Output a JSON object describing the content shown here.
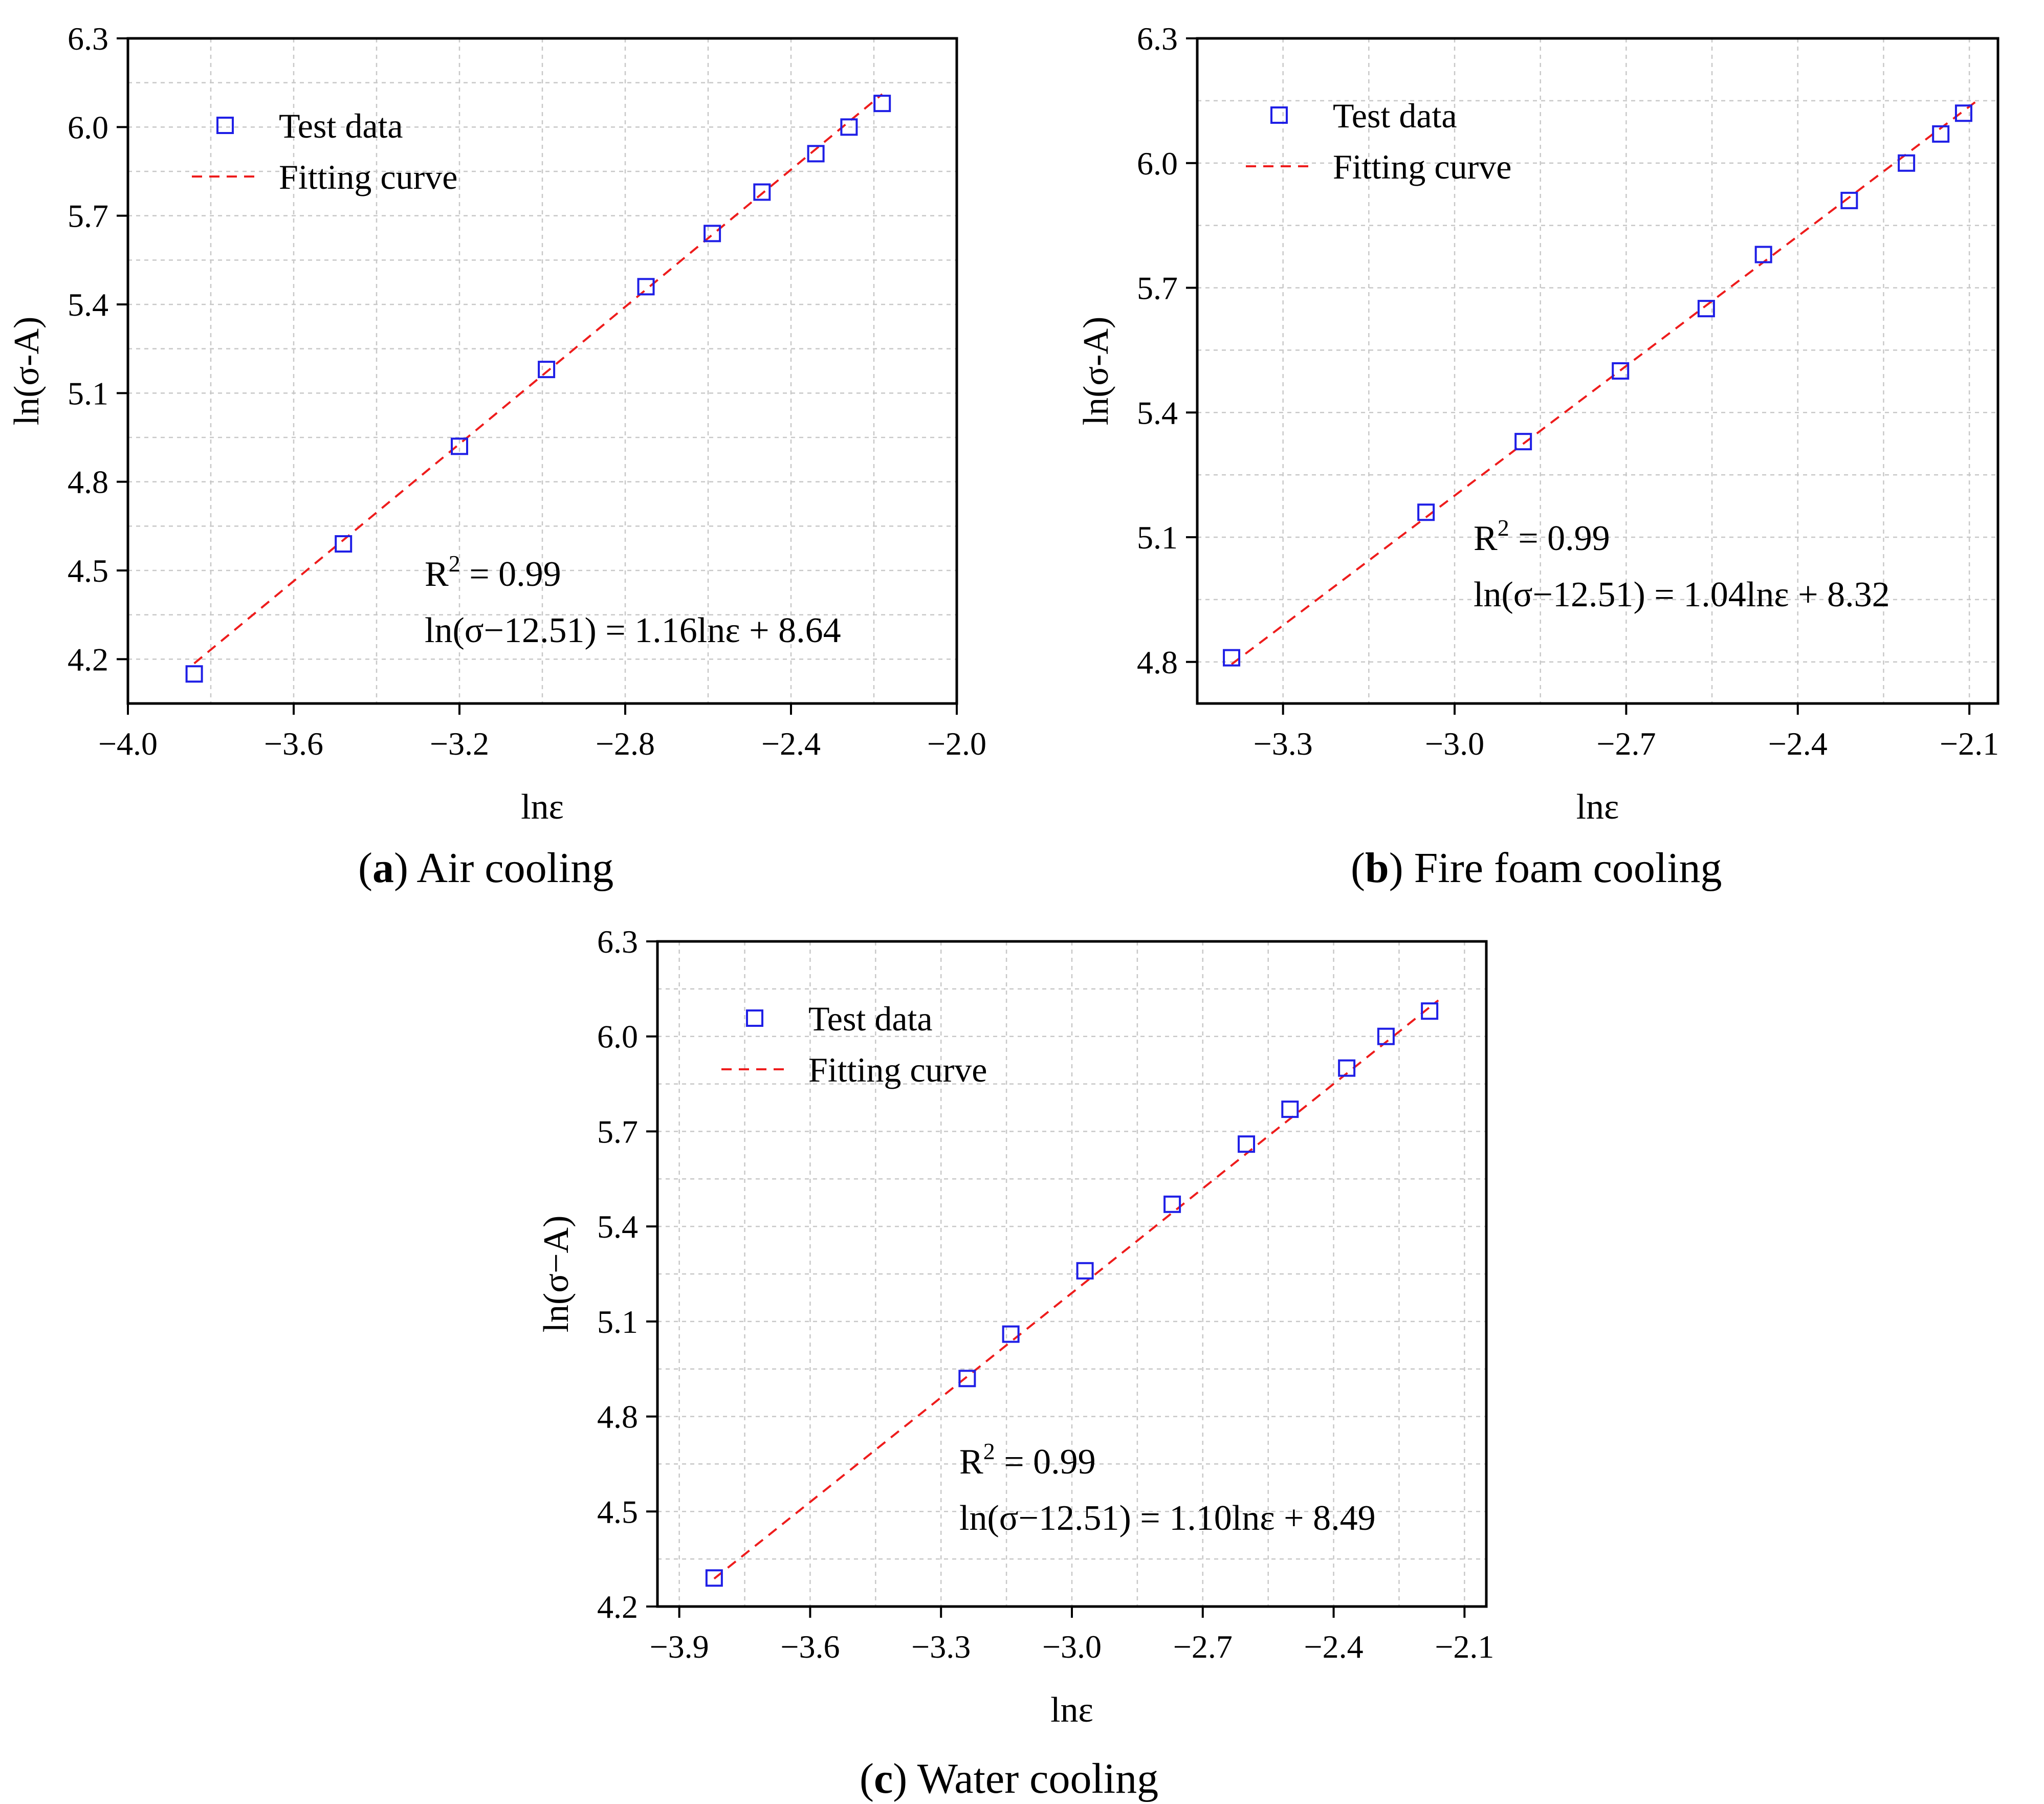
{
  "figure": {
    "captions": [
      {
        "letter": "a",
        "text": "Air cooling"
      },
      {
        "letter": "b",
        "text": "Fire foam cooling"
      },
      {
        "letter": "c",
        "text": "Water cooling"
      }
    ]
  },
  "colors": {
    "marker": "#1f1fe6",
    "fit": "#ee1c1c",
    "grid": "#c8c8c8",
    "axis": "#000000"
  },
  "chart_data": [
    {
      "id": "a",
      "type": "scatter",
      "title": "",
      "xlabel": "lnε",
      "ylabel": "ln(σ-A)",
      "xlim": [
        -4.0,
        -2.0
      ],
      "ylim": [
        4.05,
        6.3
      ],
      "xticks": [
        "−4.0",
        "−3.6",
        "−3.2",
        "−2.8",
        "−2.4",
        "−2.0"
      ],
      "xtick_values": [
        -4.0,
        -3.6,
        -3.2,
        -2.8,
        -2.4,
        -2.0
      ],
      "yticks": [
        "4.2",
        "4.5",
        "4.8",
        "5.1",
        "5.4",
        "5.7",
        "6.0",
        "6.3"
      ],
      "ytick_values": [
        4.2,
        4.5,
        4.8,
        5.1,
        5.4,
        5.7,
        6.0,
        6.3
      ],
      "grid": true,
      "legend": {
        "position": "top-left",
        "entries": [
          "Test data",
          "Fitting curve"
        ]
      },
      "series": [
        {
          "name": "Test data",
          "kind": "markers",
          "x": [
            -3.84,
            -3.48,
            -3.2,
            -2.99,
            -2.75,
            -2.59,
            -2.47,
            -2.34,
            -2.26,
            -2.18
          ],
          "y": [
            4.15,
            4.59,
            4.92,
            5.18,
            5.46,
            5.64,
            5.78,
            5.91,
            6.0,
            6.08
          ]
        },
        {
          "name": "Fitting curve",
          "kind": "dashed-line",
          "slope": 1.16,
          "intercept": 8.64,
          "x_range": [
            -3.84,
            -2.18
          ]
        }
      ],
      "annotations": {
        "r2_label": "R",
        "r2_sup": "2",
        "r2_value": "= 0.99",
        "equation": "ln(σ−12.51) = 1.16lnε + 8.64"
      }
    },
    {
      "id": "b",
      "type": "scatter",
      "title": "",
      "xlabel": "lnε",
      "ylabel": "ln(σ-A)",
      "xlim": [
        -3.45,
        -2.05
      ],
      "ylim": [
        4.7,
        6.3
      ],
      "xticks": [
        "−3.3",
        "−3.0",
        "−2.7",
        "−2.4",
        "−2.1"
      ],
      "xtick_values": [
        -3.3,
        -3.0,
        -2.7,
        -2.4,
        -2.1
      ],
      "yticks": [
        "4.8",
        "5.1",
        "5.4",
        "5.7",
        "6.0",
        "6.3"
      ],
      "ytick_values": [
        4.8,
        5.1,
        5.4,
        5.7,
        6.0,
        6.3
      ],
      "grid": true,
      "legend": {
        "position": "top-left",
        "entries": [
          "Test data",
          "Fitting curve"
        ]
      },
      "series": [
        {
          "name": "Test data",
          "kind": "markers",
          "x": [
            -3.39,
            -3.05,
            -2.88,
            -2.71,
            -2.56,
            -2.46,
            -2.31,
            -2.21,
            -2.15,
            -2.11
          ],
          "y": [
            4.81,
            5.16,
            5.33,
            5.5,
            5.65,
            5.78,
            5.91,
            6.0,
            6.07,
            6.12
          ]
        },
        {
          "name": "Fitting curve",
          "kind": "dashed-line",
          "slope": 1.04,
          "intercept": 8.32,
          "x_range": [
            -3.39,
            -2.09
          ]
        }
      ],
      "annotations": {
        "r2_label": "R",
        "r2_sup": "2",
        "r2_value": "= 0.99",
        "equation": "ln(σ−12.51) = 1.04lnε + 8.32"
      }
    },
    {
      "id": "c",
      "type": "scatter",
      "title": "",
      "xlabel": "lnε",
      "ylabel": "ln(σ−A)",
      "xlim": [
        -3.95,
        -2.05
      ],
      "ylim": [
        4.2,
        6.3
      ],
      "xticks": [
        "−3.9",
        "−3.6",
        "−3.3",
        "−3.0",
        "−2.7",
        "−2.4",
        "−2.1"
      ],
      "xtick_values": [
        -3.9,
        -3.6,
        -3.3,
        -3.0,
        -2.7,
        -2.4,
        -2.1
      ],
      "yticks": [
        "4.2",
        "4.5",
        "4.8",
        "5.1",
        "5.4",
        "5.7",
        "6.0",
        "6.3"
      ],
      "ytick_values": [
        4.2,
        4.5,
        4.8,
        5.1,
        5.4,
        5.7,
        6.0,
        6.3
      ],
      "grid": true,
      "legend": {
        "position": "top-left",
        "entries": [
          "Test data",
          "Fitting curve"
        ]
      },
      "series": [
        {
          "name": "Test data",
          "kind": "markers",
          "x": [
            -3.82,
            -3.24,
            -3.14,
            -2.97,
            -2.77,
            -2.6,
            -2.5,
            -2.37,
            -2.28,
            -2.18
          ],
          "y": [
            4.29,
            4.92,
            5.06,
            5.26,
            5.47,
            5.66,
            5.77,
            5.9,
            6.0,
            6.08
          ]
        },
        {
          "name": "Fitting curve",
          "kind": "dashed-line",
          "slope": 1.1,
          "intercept": 8.49,
          "x_range": [
            -3.82,
            -2.16
          ]
        }
      ],
      "annotations": {
        "r2_label": "R",
        "r2_sup": "2",
        "r2_value": "= 0.99",
        "equation": "ln(σ−12.51) = 1.10lnε + 8.49"
      }
    }
  ]
}
